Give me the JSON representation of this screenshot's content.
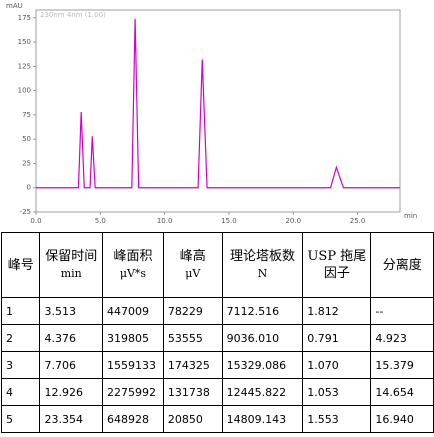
{
  "chart_data": {
    "type": "line",
    "y_axis_label": "mAU",
    "x_axis_label": "min",
    "legend_text": "230nm 4nm (1.00)",
    "x": [
      0,
      3.3,
      3.513,
      3.75,
      4.2,
      4.376,
      4.6,
      7.45,
      7.706,
      7.98,
      12.6,
      12.926,
      13.3,
      22.9,
      23.354,
      23.9,
      28.3
    ],
    "series": [
      {
        "name": "230nm 4nm (1.00)",
        "color": "#d000d0",
        "values": [
          0,
          0,
          78,
          0,
          0,
          53,
          0,
          0,
          174,
          0,
          0,
          132,
          0,
          0,
          21,
          0,
          0
        ]
      }
    ],
    "xlim": [
      0,
      28.3
    ],
    "ylim": [
      -25,
      183
    ],
    "xticks": [
      {
        "value": 0,
        "label": "0.0"
      },
      {
        "value": 5,
        "label": "5.0"
      },
      {
        "value": 10,
        "label": "10.0"
      },
      {
        "value": 15,
        "label": "15.0"
      },
      {
        "value": 20,
        "label": "20.0"
      },
      {
        "value": 25,
        "label": "25.0"
      }
    ],
    "yticks": [
      -25,
      0,
      25,
      50,
      75,
      100,
      125,
      150,
      175
    ]
  },
  "table": {
    "headers": [
      {
        "label": "峰号"
      },
      {
        "label": "保留时间",
        "unit": "min"
      },
      {
        "label": "峰面积",
        "unit": "μV*s"
      },
      {
        "label": "峰高",
        "unit": "μV"
      },
      {
        "label": "理论塔板数",
        "unit": "N"
      },
      {
        "label": "USP 拖尾因子"
      },
      {
        "label": "分离度"
      }
    ],
    "rows": [
      [
        "1",
        "3.513",
        "447009",
        "78229",
        "7112.516",
        "1.812",
        "--"
      ],
      [
        "2",
        "4.376",
        "319805",
        "53555",
        "9036.010",
        "0.791",
        "4.923"
      ],
      [
        "3",
        "7.706",
        "1559133",
        "174325",
        "15329.086",
        "1.070",
        "15.379"
      ],
      [
        "4",
        "12.926",
        "2275992",
        "131738",
        "12445.822",
        "1.053",
        "14.654"
      ],
      [
        "5",
        "23.354",
        "648928",
        "20850",
        "14809.143",
        "1.553",
        "16.940"
      ]
    ]
  }
}
